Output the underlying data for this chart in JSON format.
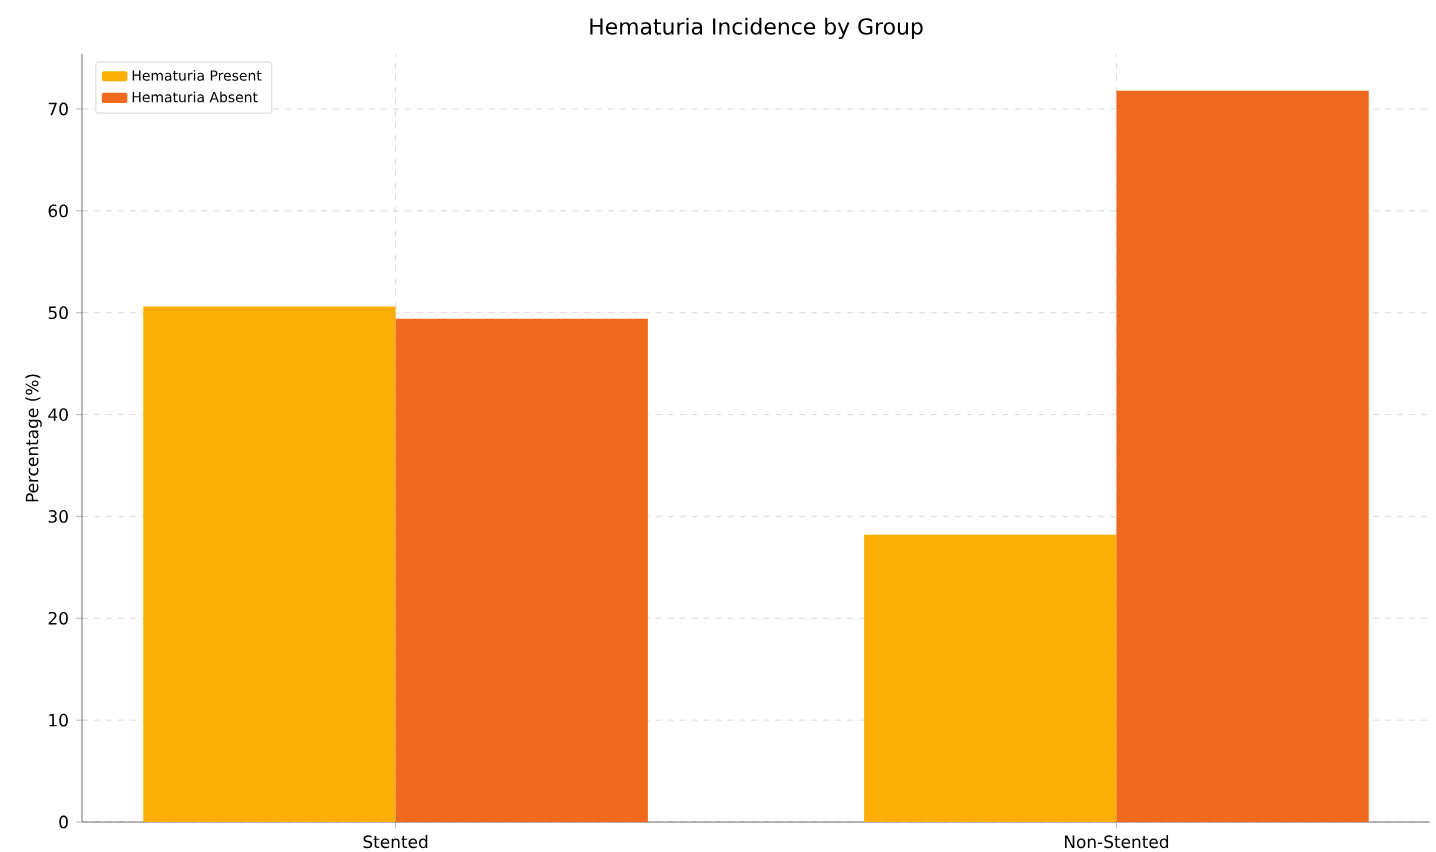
{
  "chart_data": {
    "type": "bar",
    "title": "Hematuria Incidence by Group",
    "ylabel": "Percentage (%)",
    "categories": [
      "Stented",
      "Non-Stented"
    ],
    "series": [
      {
        "name": "Hematuria Present",
        "color": "#fbae03",
        "values": [
          50.6,
          28.2
        ]
      },
      {
        "name": "Hematuria Absent",
        "color": "#f0691f",
        "values": [
          49.4,
          71.8
        ]
      }
    ],
    "ylim": [
      0,
      75.4
    ],
    "yticks": [
      0,
      10,
      20,
      30,
      40,
      50,
      60,
      70
    ],
    "grid": true,
    "legend": "top left"
  }
}
